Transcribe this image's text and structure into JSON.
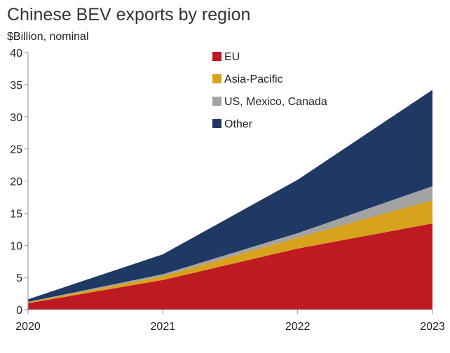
{
  "chart_data": {
    "type": "area",
    "stacked": true,
    "title": "Chinese BEV exports by region",
    "subtitle": "$Billion, nominal",
    "xlabel": "",
    "ylabel": "",
    "x": [
      2020,
      2021,
      2022,
      2023
    ],
    "x_tick_labels": [
      "2020",
      "2021",
      "2022",
      "2023"
    ],
    "ylim": [
      0,
      40
    ],
    "y_ticks": [
      0,
      5,
      10,
      15,
      20,
      25,
      30,
      35,
      40
    ],
    "grid": false,
    "legend_position": "top-center",
    "series": [
      {
        "name": "EU",
        "color": "#be1a21",
        "values": [
          1.0,
          4.6,
          9.5,
          13.4
        ]
      },
      {
        "name": "Asia-Pacific",
        "color": "#d9a21c",
        "values": [
          0.1,
          0.6,
          1.7,
          3.6
        ]
      },
      {
        "name": "US, Mexico, Canada",
        "color": "#a3a3a3",
        "values": [
          0.1,
          0.3,
          0.7,
          2.2
        ]
      },
      {
        "name": "Other",
        "color": "#1f3864",
        "values": [
          0.4,
          3.1,
          8.3,
          15.0
        ]
      }
    ]
  }
}
